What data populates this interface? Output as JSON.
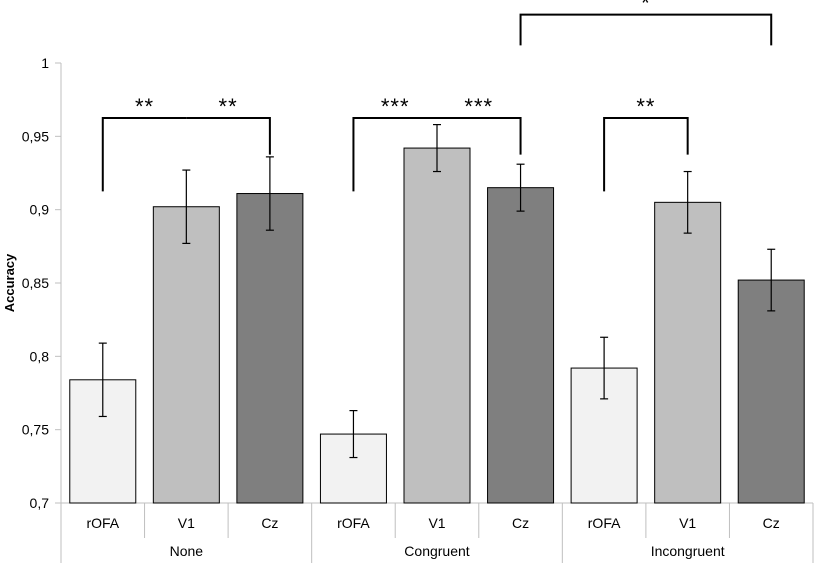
{
  "chart_data": {
    "type": "bar",
    "ylabel": "Accuracy",
    "xlabel": "",
    "title": "",
    "ylim": [
      0.7,
      1
    ],
    "yticks": [
      0.7,
      0.75,
      0.8,
      0.85,
      0.9,
      0.95,
      1
    ],
    "ytick_labels": [
      "0,7",
      "0,75",
      "0,8",
      "0,85",
      "0,9",
      "0,95",
      "1"
    ],
    "grid": false,
    "groups": [
      {
        "name": "None",
        "bars": [
          {
            "label": "rOFA",
            "value": 0.784,
            "error": 0.025,
            "color": "#f2f2f2"
          },
          {
            "label": "V1",
            "value": 0.902,
            "error": 0.025,
            "color": "#bfbfbf"
          },
          {
            "label": "Cz",
            "value": 0.911,
            "error": 0.025,
            "color": "#7f7f7f"
          }
        ]
      },
      {
        "name": "Congruent",
        "bars": [
          {
            "label": "rOFA",
            "value": 0.747,
            "error": 0.016,
            "color": "#f2f2f2"
          },
          {
            "label": "V1",
            "value": 0.942,
            "error": 0.016,
            "color": "#bfbfbf"
          },
          {
            "label": "Cz",
            "value": 0.915,
            "error": 0.016,
            "color": "#7f7f7f"
          }
        ]
      },
      {
        "name": "Incongruent",
        "bars": [
          {
            "label": "rOFA",
            "value": 0.792,
            "error": 0.021,
            "color": "#f2f2f2"
          },
          {
            "label": "V1",
            "value": 0.905,
            "error": 0.021,
            "color": "#bfbfbf"
          },
          {
            "label": "Cz",
            "value": 0.852,
            "error": 0.021,
            "color": "#7f7f7f"
          }
        ]
      }
    ],
    "significance": [
      {
        "from": [
          0,
          0
        ],
        "to": [
          0,
          1
        ],
        "label": "**",
        "level": 0.9625,
        "drop_from": 0.9125,
        "drop_to": 0.9625
      },
      {
        "from": [
          0,
          1
        ],
        "to": [
          0,
          2
        ],
        "label": "**",
        "level": 0.9625,
        "drop_from": 0.9625,
        "drop_to": 0.9375
      },
      {
        "from": [
          1,
          0
        ],
        "to": [
          1,
          1
        ],
        "label": "***",
        "level": 0.9625,
        "drop_from": 0.9125,
        "drop_to": 0.9625
      },
      {
        "from": [
          1,
          1
        ],
        "to": [
          1,
          2
        ],
        "label": "***",
        "level": 0.9625,
        "drop_from": 0.9625,
        "drop_to": 0.9375
      },
      {
        "from": [
          2,
          0
        ],
        "to": [
          2,
          1
        ],
        "label": "**",
        "level": 0.9625,
        "drop_from": 0.9125,
        "drop_to": 0.9375
      },
      {
        "from": [
          1,
          2
        ],
        "to": [
          2,
          2
        ],
        "label": "*",
        "level": 1.033,
        "drop_from": 1.012,
        "drop_to": 1.012
      }
    ]
  }
}
